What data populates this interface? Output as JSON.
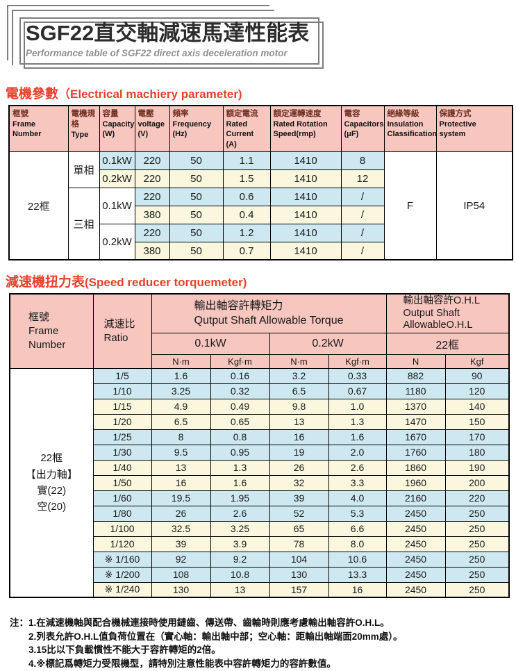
{
  "title": {
    "main": "SGF22直交軸減速馬達性能表",
    "subtitle": "Performance table of SGF22 direct axis deceleration motor"
  },
  "colors": {
    "header_pink": "#f6c6bf",
    "row_blue": "#cde8f1",
    "row_yellow": "#faf7de",
    "heading_red": "#e8402c"
  },
  "section1": {
    "heading_zh": "電機參數",
    "heading_en": "（Electrical machiery parameter)",
    "table": {
      "headers": [
        {
          "zh": "框號",
          "en": "Frame\nNumber"
        },
        {
          "zh": "電機規格",
          "en": "Type"
        },
        {
          "zh": "容量",
          "en": "Capacity\n(W)"
        },
        {
          "zh": "電壓",
          "en": "voltage\n(V)"
        },
        {
          "zh": "頻率",
          "en": "Frequency\n(Hz)"
        },
        {
          "zh": "額定電流",
          "en": "Rated\nCurrent\n(A)"
        },
        {
          "zh": "額定運轉速度",
          "en": "Rated Rotation\nSpeed(rmp)"
        },
        {
          "zh": "電容",
          "en": "Capacitors\n(μF)"
        },
        {
          "zh": "絕緣等級",
          "en": "Insulation\nClassification"
        },
        {
          "zh": "保護方式",
          "en": "Protective\nsystem"
        }
      ],
      "frame": "22框",
      "type_single": "單相",
      "type_three": "三相",
      "insulation": "F",
      "protection": "IP54",
      "rows": [
        {
          "capacity": "0.1kW",
          "voltage": "220",
          "frequency": "50",
          "current": "1.1",
          "speed": "1410",
          "capacitor": "8"
        },
        {
          "capacity": "0.2kW",
          "voltage": "220",
          "frequency": "50",
          "current": "1.5",
          "speed": "1410",
          "capacitor": "12"
        },
        {
          "capacity": "0.1kW",
          "voltage": "220",
          "frequency": "50",
          "current": "0.6",
          "speed": "1410",
          "capacitor": "/"
        },
        {
          "voltage": "380",
          "frequency": "50",
          "current": "0.4",
          "speed": "1410",
          "capacitor": "/"
        },
        {
          "capacity": "0.2kW",
          "voltage": "220",
          "frequency": "50",
          "current": "1.2",
          "speed": "1410",
          "capacitor": "/"
        },
        {
          "voltage": "380",
          "frequency": "50",
          "current": "0.7",
          "speed": "1410",
          "capacitor": "/"
        }
      ]
    }
  },
  "section2": {
    "heading_zh": "減速機扭力表",
    "heading_en": "(Speed reducer torquemeter)",
    "table": {
      "frame_header_zh": "框號",
      "frame_header_en": "Frame\nNumber",
      "ratio_header_zh": "減速比",
      "ratio_header_en": "Ratio",
      "torque_header_zh": "輸出軸容許轉矩力",
      "torque_header_en": "Qutput Shaft Allowable Torque",
      "ohl_header": "輸出軸容許O.H.L\nOutput Shaft\nAllowableO.H.L",
      "power_01": "0.1kW",
      "power_02": "0.2kW",
      "frame22": "22框",
      "units": [
        "N·m",
        "Kgf·m",
        "N·m",
        "Kgf·m",
        "N",
        "Kgf"
      ],
      "frame_label": "22框\n【出力軸】\n實(22)\n空(20)",
      "rows": [
        {
          "ratio": "1/5",
          "values": [
            "1.6",
            "0.16",
            "3.2",
            "0.33",
            "882",
            "90"
          ],
          "tint": "blue"
        },
        {
          "ratio": "1/10",
          "values": [
            "3.25",
            "0.32",
            "6.5",
            "0.67",
            "1180",
            "120"
          ],
          "tint": "blue"
        },
        {
          "ratio": "1/15",
          "values": [
            "4.9",
            "0.49",
            "9.8",
            "1.0",
            "1370",
            "140"
          ],
          "tint": "yellow"
        },
        {
          "ratio": "1/20",
          "values": [
            "6.5",
            "0.65",
            "13",
            "1.3",
            "1470",
            "150"
          ],
          "tint": "yellow"
        },
        {
          "ratio": "1/25",
          "values": [
            "8",
            "0.8",
            "16",
            "1.6",
            "1670",
            "170"
          ],
          "tint": "blue"
        },
        {
          "ratio": "1/30",
          "values": [
            "9.5",
            "0.95",
            "19",
            "2.0",
            "1760",
            "180"
          ],
          "tint": "blue"
        },
        {
          "ratio": "1/40",
          "values": [
            "13",
            "1.3",
            "26",
            "2.6",
            "1860",
            "190"
          ],
          "tint": "yellow"
        },
        {
          "ratio": "1/50",
          "values": [
            "16",
            "1.6",
            "32",
            "3.3",
            "1960",
            "200"
          ],
          "tint": "yellow"
        },
        {
          "ratio": "1/60",
          "values": [
            "19.5",
            "1.95",
            "39",
            "4.0",
            "2160",
            "220"
          ],
          "tint": "blue"
        },
        {
          "ratio": "1/80",
          "values": [
            "26",
            "2.6",
            "52",
            "5.3",
            "2450",
            "250"
          ],
          "tint": "blue"
        },
        {
          "ratio": "1/100",
          "values": [
            "32.5",
            "3.25",
            "65",
            "6.6",
            "2450",
            "250"
          ],
          "tint": "yellow"
        },
        {
          "ratio": "1/120",
          "values": [
            "39",
            "3.9",
            "78",
            "8.0",
            "2450",
            "250"
          ],
          "tint": "yellow"
        },
        {
          "ratio": "※ 1/160",
          "values": [
            "92",
            "9.2",
            "104",
            "10.6",
            "2450",
            "250"
          ],
          "tint": "blue"
        },
        {
          "ratio": "※ 1/200",
          "values": [
            "108",
            "10.8",
            "130",
            "13.3",
            "2450",
            "250"
          ],
          "tint": "blue"
        },
        {
          "ratio": "※ 1/240",
          "values": [
            "130",
            "13",
            "157",
            "16",
            "2450",
            "250"
          ],
          "tint": "yellow"
        }
      ]
    }
  },
  "notes": {
    "label": "注：",
    "items": [
      "1.在減速機軸與配合機械連接時使用鏈齒、傳送帶、齒輪時則應考慮輸出軸容許O.H.L。",
      "2.列表允許O.H.L值負荷位置在（實心軸：輸出軸中部；空心軸：距輸出軸端面20mm處）。",
      "3.15比以下負載慣性不能大于容許轉矩的2倍。",
      "4.※標記爲轉矩力受限機型，請特別注意性能表中容許轉矩力的容許數值。"
    ]
  }
}
